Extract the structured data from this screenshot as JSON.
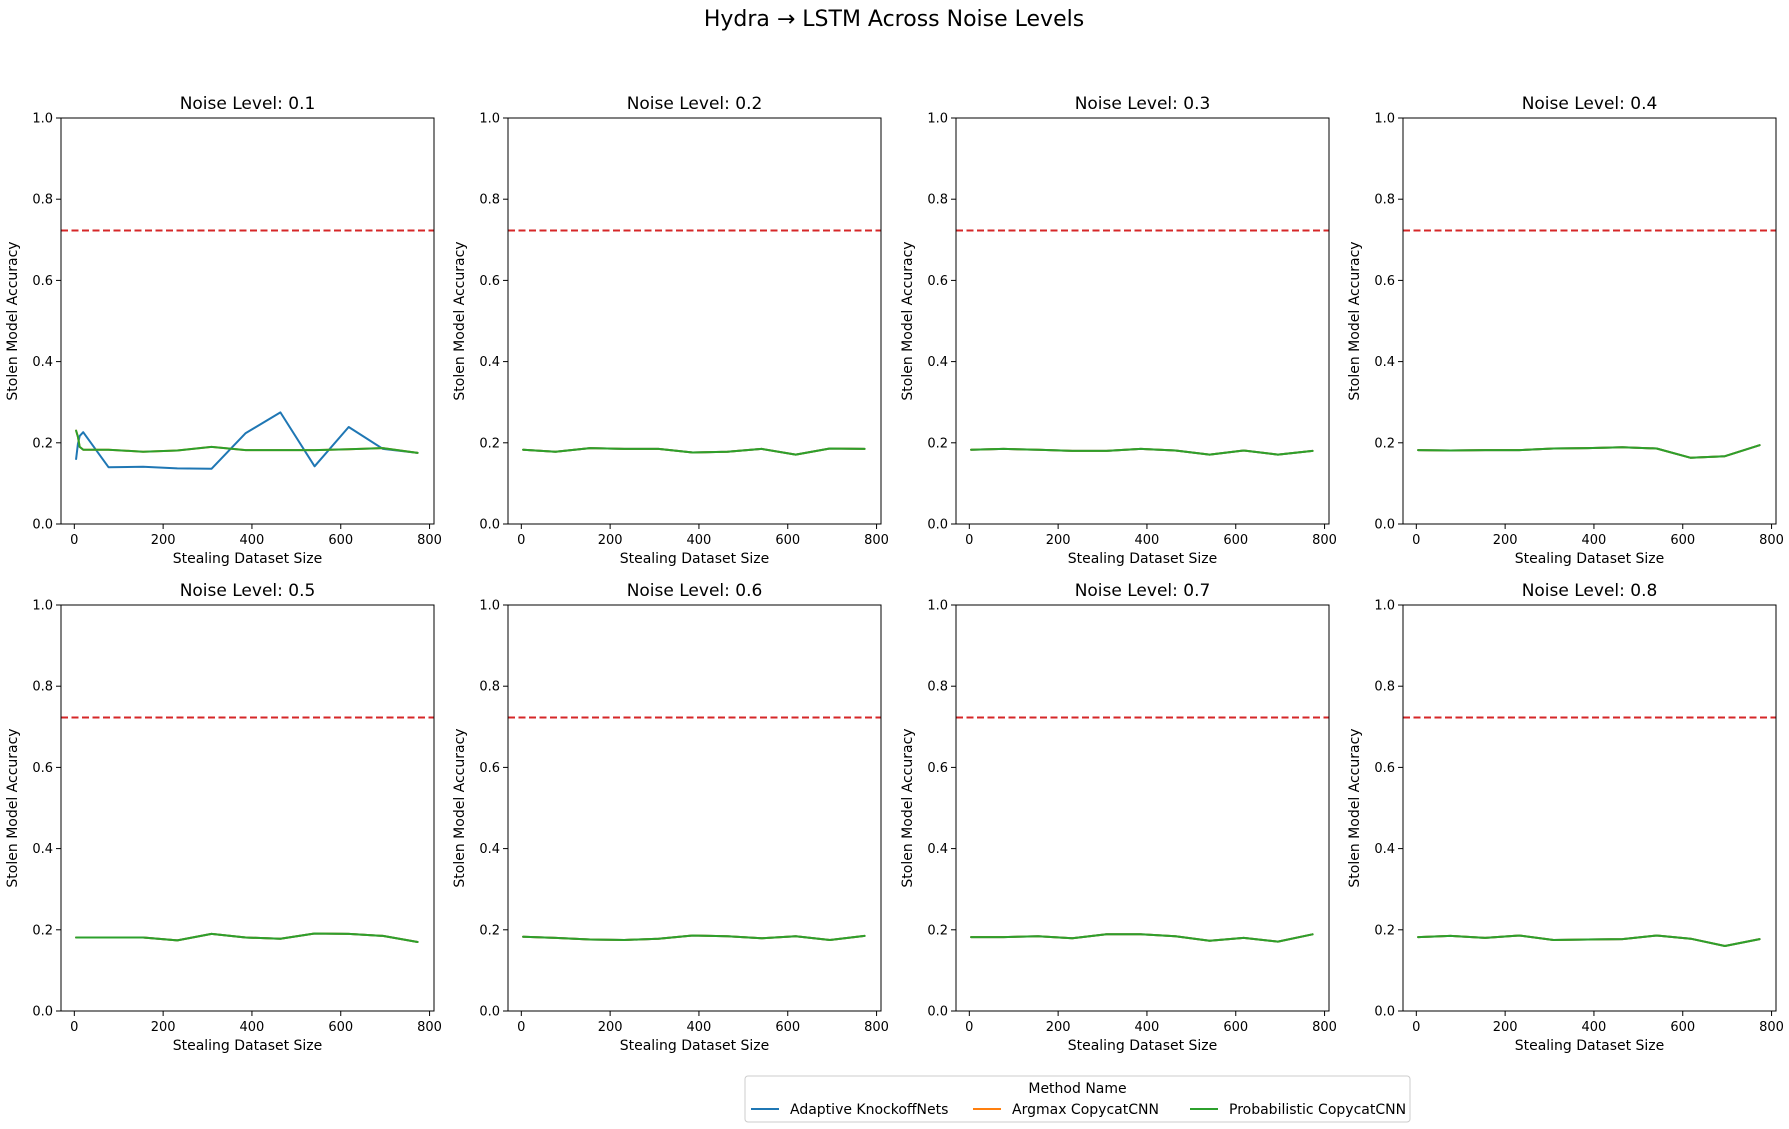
{
  "title": "Hydra → LSTM Across Noise Levels",
  "legend": {
    "title": "Method Name",
    "placement": "bottom-center",
    "entries": [
      {
        "name": "Adaptive KnockoffNets",
        "color": "#1f77b4"
      },
      {
        "name": "Argmax CopycatCNN",
        "color": "#ff7f0e"
      },
      {
        "name": "Probabilistic CopycatCNN",
        "color": "#2ca02c"
      }
    ]
  },
  "chart_data": [
    {
      "type": "line",
      "title": "Noise Level: 0.1",
      "xlabel": "Stealing Dataset Size",
      "ylabel": "Stolen Model Accuracy",
      "xlim": [
        -30,
        810
      ],
      "ylim": [
        0.0,
        1.0
      ],
      "xticks": [
        "0",
        "200",
        "400",
        "600",
        "800"
      ],
      "yticks": [
        "0.0",
        "0.2",
        "0.4",
        "0.6",
        "0.8",
        "1.0"
      ],
      "grid": false,
      "reference_line": {
        "y": 0.723,
        "color": "#d62728",
        "style": "dashed"
      },
      "series": [
        {
          "name": "Adaptive KnockoffNets",
          "color": "#1f77b4",
          "x": [
            4,
            8,
            12,
            20,
            77,
            155,
            232,
            309,
            386,
            464,
            541,
            618,
            695,
            773
          ],
          "y": [
            0.16,
            0.197,
            0.217,
            0.226,
            0.14,
            0.141,
            0.137,
            0.136,
            0.224,
            0.275,
            0.142,
            0.239,
            0.185,
            0.175
          ]
        },
        {
          "name": "Argmax CopycatCNN",
          "color": "#ff7f0e",
          "x": [
            4,
            8,
            12,
            20,
            77,
            155,
            232,
            309,
            386,
            464,
            541,
            618,
            695,
            773
          ],
          "y": [
            0.23,
            0.215,
            0.19,
            0.183,
            0.183,
            0.178,
            0.181,
            0.19,
            0.182,
            0.182,
            0.182,
            0.184,
            0.187,
            0.175
          ]
        },
        {
          "name": "Probabilistic CopycatCNN",
          "color": "#2ca02c",
          "x": [
            4,
            8,
            12,
            20,
            77,
            155,
            232,
            309,
            386,
            464,
            541,
            618,
            695,
            773
          ],
          "y": [
            0.23,
            0.215,
            0.19,
            0.183,
            0.183,
            0.178,
            0.181,
            0.19,
            0.182,
            0.182,
            0.182,
            0.184,
            0.187,
            0.175
          ]
        }
      ]
    },
    {
      "type": "line",
      "title": "Noise Level: 0.2",
      "xlabel": "Stealing Dataset Size",
      "ylabel": "Stolen Model Accuracy",
      "xlim": [
        -30,
        810
      ],
      "ylim": [
        0.0,
        1.0
      ],
      "xticks": [
        "0",
        "200",
        "400",
        "600",
        "800"
      ],
      "yticks": [
        "0.0",
        "0.2",
        "0.4",
        "0.6",
        "0.8",
        "1.0"
      ],
      "grid": false,
      "reference_line": {
        "y": 0.723,
        "color": "#d62728",
        "style": "dashed"
      },
      "series": [
        {
          "name": "Adaptive KnockoffNets",
          "color": "#1f77b4",
          "x": [
            4,
            77,
            155,
            232,
            309,
            386,
            464,
            541,
            618,
            695,
            773
          ],
          "y": [
            0.183,
            0.178,
            0.187,
            0.185,
            0.185,
            0.176,
            0.178,
            0.185,
            0.171,
            0.186,
            0.185
          ]
        },
        {
          "name": "Argmax CopycatCNN",
          "color": "#ff7f0e",
          "x": [
            4,
            77,
            155,
            232,
            309,
            386,
            464,
            541,
            618,
            695,
            773
          ],
          "y": [
            0.183,
            0.178,
            0.187,
            0.185,
            0.185,
            0.176,
            0.178,
            0.185,
            0.171,
            0.186,
            0.185
          ]
        },
        {
          "name": "Probabilistic CopycatCNN",
          "color": "#2ca02c",
          "x": [
            4,
            77,
            155,
            232,
            309,
            386,
            464,
            541,
            618,
            695,
            773
          ],
          "y": [
            0.183,
            0.178,
            0.187,
            0.185,
            0.185,
            0.176,
            0.178,
            0.185,
            0.171,
            0.186,
            0.185
          ]
        }
      ]
    },
    {
      "type": "line",
      "title": "Noise Level: 0.3",
      "xlabel": "Stealing Dataset Size",
      "ylabel": "Stolen Model Accuracy",
      "xlim": [
        -30,
        810
      ],
      "ylim": [
        0.0,
        1.0
      ],
      "xticks": [
        "0",
        "200",
        "400",
        "600",
        "800"
      ],
      "yticks": [
        "0.0",
        "0.2",
        "0.4",
        "0.6",
        "0.8",
        "1.0"
      ],
      "grid": false,
      "reference_line": {
        "y": 0.723,
        "color": "#d62728",
        "style": "dashed"
      },
      "series": [
        {
          "name": "Adaptive KnockoffNets",
          "color": "#1f77b4",
          "x": [
            4,
            77,
            155,
            232,
            309,
            386,
            464,
            541,
            618,
            695,
            773
          ],
          "y": [
            0.183,
            0.185,
            0.183,
            0.18,
            0.18,
            0.185,
            0.181,
            0.171,
            0.181,
            0.171,
            0.18
          ]
        },
        {
          "name": "Argmax CopycatCNN",
          "color": "#ff7f0e",
          "x": [
            4,
            77,
            155,
            232,
            309,
            386,
            464,
            541,
            618,
            695,
            773
          ],
          "y": [
            0.183,
            0.185,
            0.183,
            0.18,
            0.18,
            0.185,
            0.181,
            0.171,
            0.181,
            0.171,
            0.18
          ]
        },
        {
          "name": "Probabilistic CopycatCNN",
          "color": "#2ca02c",
          "x": [
            4,
            77,
            155,
            232,
            309,
            386,
            464,
            541,
            618,
            695,
            773
          ],
          "y": [
            0.183,
            0.185,
            0.183,
            0.18,
            0.18,
            0.185,
            0.181,
            0.171,
            0.181,
            0.171,
            0.18
          ]
        }
      ]
    },
    {
      "type": "line",
      "title": "Noise Level: 0.4",
      "xlabel": "Stealing Dataset Size",
      "ylabel": "Stolen Model Accuracy",
      "xlim": [
        -30,
        810
      ],
      "ylim": [
        0.0,
        1.0
      ],
      "xticks": [
        "0",
        "200",
        "400",
        "600",
        "800"
      ],
      "yticks": [
        "0.0",
        "0.2",
        "0.4",
        "0.6",
        "0.8",
        "1.0"
      ],
      "grid": false,
      "reference_line": {
        "y": 0.723,
        "color": "#d62728",
        "style": "dashed"
      },
      "series": [
        {
          "name": "Adaptive KnockoffNets",
          "color": "#1f77b4",
          "x": [
            4,
            77,
            155,
            232,
            309,
            386,
            464,
            541,
            618,
            695,
            773
          ],
          "y": [
            0.182,
            0.181,
            0.182,
            0.182,
            0.186,
            0.187,
            0.189,
            0.186,
            0.163,
            0.167,
            0.194
          ]
        },
        {
          "name": "Argmax CopycatCNN",
          "color": "#ff7f0e",
          "x": [
            4,
            77,
            155,
            232,
            309,
            386,
            464,
            541,
            618,
            695,
            773
          ],
          "y": [
            0.182,
            0.181,
            0.182,
            0.182,
            0.186,
            0.187,
            0.189,
            0.186,
            0.163,
            0.167,
            0.194
          ]
        },
        {
          "name": "Probabilistic CopycatCNN",
          "color": "#2ca02c",
          "x": [
            4,
            77,
            155,
            232,
            309,
            386,
            464,
            541,
            618,
            695,
            773
          ],
          "y": [
            0.182,
            0.181,
            0.182,
            0.182,
            0.186,
            0.187,
            0.189,
            0.186,
            0.163,
            0.167,
            0.194
          ]
        }
      ]
    },
    {
      "type": "line",
      "title": "Noise Level: 0.5",
      "xlabel": "Stealing Dataset Size",
      "ylabel": "Stolen Model Accuracy",
      "xlim": [
        -30,
        810
      ],
      "ylim": [
        0.0,
        1.0
      ],
      "xticks": [
        "0",
        "200",
        "400",
        "600",
        "800"
      ],
      "yticks": [
        "0.0",
        "0.2",
        "0.4",
        "0.6",
        "0.8",
        "1.0"
      ],
      "grid": false,
      "reference_line": {
        "y": 0.723,
        "color": "#d62728",
        "style": "dashed"
      },
      "series": [
        {
          "name": "Adaptive KnockoffNets",
          "color": "#1f77b4",
          "x": [
            4,
            77,
            155,
            232,
            309,
            386,
            464,
            541,
            618,
            695,
            773
          ],
          "y": [
            0.181,
            0.181,
            0.181,
            0.174,
            0.19,
            0.181,
            0.178,
            0.191,
            0.19,
            0.185,
            0.17
          ]
        },
        {
          "name": "Argmax CopycatCNN",
          "color": "#ff7f0e",
          "x": [
            4,
            77,
            155,
            232,
            309,
            386,
            464,
            541,
            618,
            695,
            773
          ],
          "y": [
            0.181,
            0.181,
            0.181,
            0.174,
            0.19,
            0.181,
            0.178,
            0.191,
            0.19,
            0.185,
            0.17
          ]
        },
        {
          "name": "Probabilistic CopycatCNN",
          "color": "#2ca02c",
          "x": [
            4,
            77,
            155,
            232,
            309,
            386,
            464,
            541,
            618,
            695,
            773
          ],
          "y": [
            0.181,
            0.181,
            0.181,
            0.174,
            0.19,
            0.181,
            0.178,
            0.191,
            0.19,
            0.185,
            0.17
          ]
        }
      ]
    },
    {
      "type": "line",
      "title": "Noise Level: 0.6",
      "xlabel": "Stealing Dataset Size",
      "ylabel": "Stolen Model Accuracy",
      "xlim": [
        -30,
        810
      ],
      "ylim": [
        0.0,
        1.0
      ],
      "xticks": [
        "0",
        "200",
        "400",
        "600",
        "800"
      ],
      "yticks": [
        "0.0",
        "0.2",
        "0.4",
        "0.6",
        "0.8",
        "1.0"
      ],
      "grid": false,
      "reference_line": {
        "y": 0.723,
        "color": "#d62728",
        "style": "dashed"
      },
      "series": [
        {
          "name": "Adaptive KnockoffNets",
          "color": "#1f77b4",
          "x": [
            4,
            77,
            155,
            232,
            309,
            386,
            464,
            541,
            618,
            695,
            773
          ],
          "y": [
            0.183,
            0.18,
            0.176,
            0.175,
            0.178,
            0.186,
            0.184,
            0.179,
            0.184,
            0.175,
            0.185
          ]
        },
        {
          "name": "Argmax CopycatCNN",
          "color": "#ff7f0e",
          "x": [
            4,
            77,
            155,
            232,
            309,
            386,
            464,
            541,
            618,
            695,
            773
          ],
          "y": [
            0.183,
            0.18,
            0.176,
            0.175,
            0.178,
            0.186,
            0.184,
            0.179,
            0.184,
            0.175,
            0.185
          ]
        },
        {
          "name": "Probabilistic CopycatCNN",
          "color": "#2ca02c",
          "x": [
            4,
            77,
            155,
            232,
            309,
            386,
            464,
            541,
            618,
            695,
            773
          ],
          "y": [
            0.183,
            0.18,
            0.176,
            0.175,
            0.178,
            0.186,
            0.184,
            0.179,
            0.184,
            0.175,
            0.185
          ]
        }
      ]
    },
    {
      "type": "line",
      "title": "Noise Level: 0.7",
      "xlabel": "Stealing Dataset Size",
      "ylabel": "Stolen Model Accuracy",
      "xlim": [
        -30,
        810
      ],
      "ylim": [
        0.0,
        1.0
      ],
      "xticks": [
        "0",
        "200",
        "400",
        "600",
        "800"
      ],
      "yticks": [
        "0.0",
        "0.2",
        "0.4",
        "0.6",
        "0.8",
        "1.0"
      ],
      "grid": false,
      "reference_line": {
        "y": 0.723,
        "color": "#d62728",
        "style": "dashed"
      },
      "series": [
        {
          "name": "Adaptive KnockoffNets",
          "color": "#1f77b4",
          "x": [
            4,
            77,
            155,
            232,
            309,
            386,
            464,
            541,
            618,
            695,
            773
          ],
          "y": [
            0.182,
            0.182,
            0.184,
            0.179,
            0.189,
            0.189,
            0.184,
            0.173,
            0.18,
            0.171,
            0.189
          ]
        },
        {
          "name": "Argmax CopycatCNN",
          "color": "#ff7f0e",
          "x": [
            4,
            77,
            155,
            232,
            309,
            386,
            464,
            541,
            618,
            695,
            773
          ],
          "y": [
            0.182,
            0.182,
            0.184,
            0.179,
            0.189,
            0.189,
            0.184,
            0.173,
            0.18,
            0.171,
            0.189
          ]
        },
        {
          "name": "Probabilistic CopycatCNN",
          "color": "#2ca02c",
          "x": [
            4,
            77,
            155,
            232,
            309,
            386,
            464,
            541,
            618,
            695,
            773
          ],
          "y": [
            0.182,
            0.182,
            0.184,
            0.179,
            0.189,
            0.189,
            0.184,
            0.173,
            0.18,
            0.171,
            0.189
          ]
        }
      ]
    },
    {
      "type": "line",
      "title": "Noise Level: 0.8",
      "xlabel": "Stealing Dataset Size",
      "ylabel": "Stolen Model Accuracy",
      "xlim": [
        -30,
        810
      ],
      "ylim": [
        0.0,
        1.0
      ],
      "xticks": [
        "0",
        "200",
        "400",
        "600",
        "800"
      ],
      "yticks": [
        "0.0",
        "0.2",
        "0.4",
        "0.6",
        "0.8",
        "1.0"
      ],
      "grid": false,
      "reference_line": {
        "y": 0.723,
        "color": "#d62728",
        "style": "dashed"
      },
      "series": [
        {
          "name": "Adaptive KnockoffNets",
          "color": "#1f77b4",
          "x": [
            4,
            77,
            155,
            232,
            309,
            386,
            464,
            541,
            618,
            695,
            773
          ],
          "y": [
            0.182,
            0.185,
            0.18,
            0.186,
            0.175,
            0.176,
            0.177,
            0.186,
            0.178,
            0.16,
            0.177
          ]
        },
        {
          "name": "Argmax CopycatCNN",
          "color": "#ff7f0e",
          "x": [
            4,
            77,
            155,
            232,
            309,
            386,
            464,
            541,
            618,
            695,
            773
          ],
          "y": [
            0.182,
            0.185,
            0.18,
            0.186,
            0.175,
            0.176,
            0.177,
            0.186,
            0.178,
            0.16,
            0.177
          ]
        },
        {
          "name": "Probabilistic CopycatCNN",
          "color": "#2ca02c",
          "x": [
            4,
            77,
            155,
            232,
            309,
            386,
            464,
            541,
            618,
            695,
            773
          ],
          "y": [
            0.182,
            0.185,
            0.18,
            0.186,
            0.175,
            0.176,
            0.177,
            0.186,
            0.178,
            0.16,
            0.177
          ]
        }
      ]
    }
  ]
}
